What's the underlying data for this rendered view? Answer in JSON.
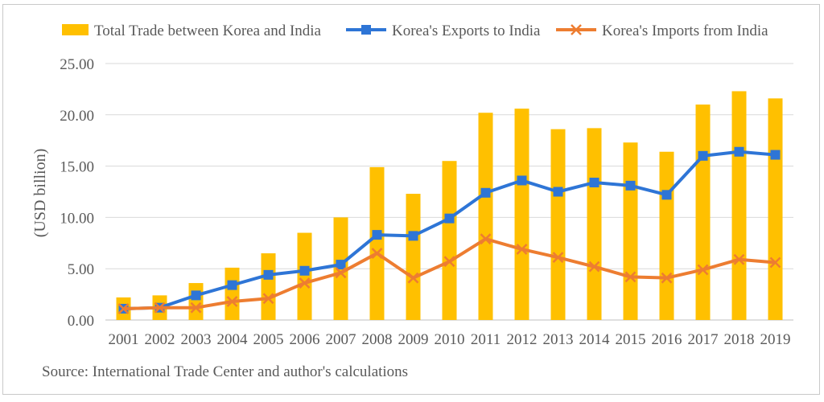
{
  "chart_data": {
    "type": "bar",
    "title": "",
    "xlabel": "",
    "ylabel": "(USD billion)",
    "ylim": [
      0,
      25
    ],
    "yticks": [
      "0.00",
      "5.00",
      "10.00",
      "15.00",
      "20.00",
      "25.00"
    ],
    "categories": [
      "2001",
      "2002",
      "2003",
      "2004",
      "2005",
      "2006",
      "2007",
      "2008",
      "2009",
      "2010",
      "2011",
      "2012",
      "2013",
      "2014",
      "2015",
      "2016",
      "2017",
      "2018",
      "2019"
    ],
    "series": [
      {
        "name": "Total Trade between Korea and India",
        "kind": "bar",
        "color": "#FFC000",
        "values": [
          2.2,
          2.4,
          3.6,
          5.1,
          6.5,
          8.5,
          10.0,
          14.9,
          12.3,
          15.5,
          20.2,
          20.6,
          18.6,
          18.7,
          17.3,
          16.4,
          21.0,
          22.3,
          21.6
        ]
      },
      {
        "name": "Korea's Exports to India",
        "kind": "line",
        "marker": "square",
        "color": "#2E75D6",
        "values": [
          1.1,
          1.2,
          2.4,
          3.4,
          4.4,
          4.8,
          5.4,
          8.3,
          8.2,
          9.9,
          12.4,
          13.6,
          12.5,
          13.4,
          13.1,
          12.2,
          16.0,
          16.4,
          16.1
        ]
      },
      {
        "name": "Korea's Imports from India",
        "kind": "line",
        "marker": "x",
        "color": "#ED7D31",
        "values": [
          1.1,
          1.2,
          1.2,
          1.8,
          2.1,
          3.6,
          4.6,
          6.5,
          4.1,
          5.7,
          7.9,
          6.9,
          6.1,
          5.2,
          4.2,
          4.1,
          4.9,
          5.9,
          5.6
        ]
      }
    ],
    "legend": "top",
    "grid": true
  },
  "source": "Source: International Trade Center and author's calculations"
}
